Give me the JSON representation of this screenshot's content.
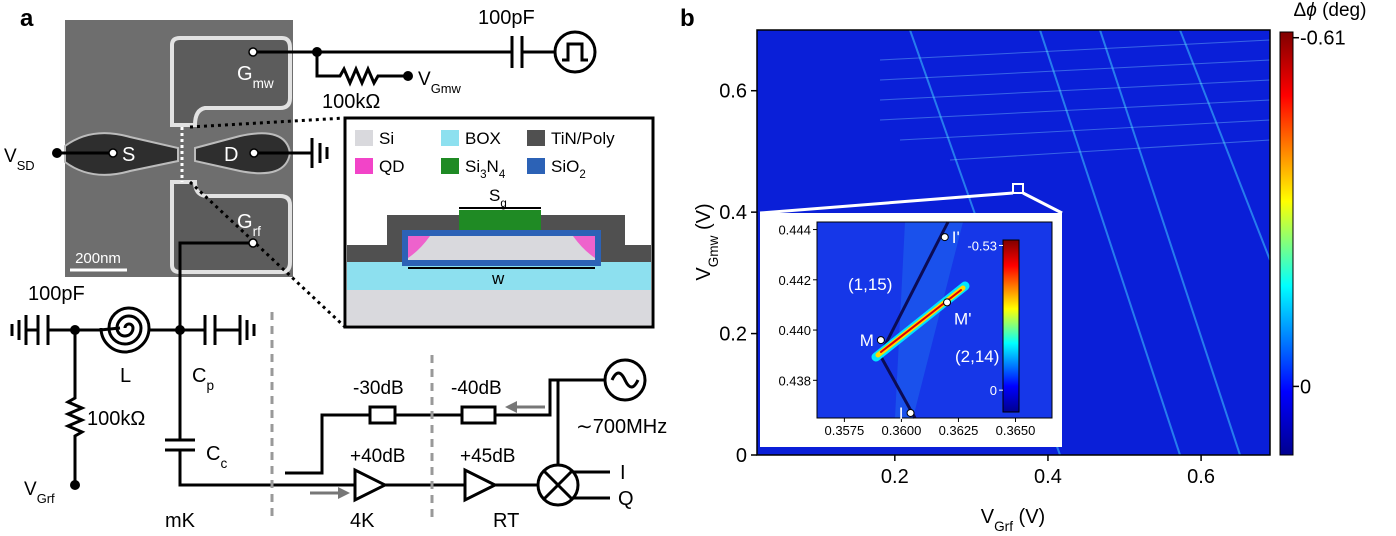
{
  "figure": {
    "panel_labels": [
      "a",
      "b"
    ],
    "sem": {
      "scale_bar": "200nm",
      "terminals": {
        "gmw": [
          {
            "text": "G"
          },
          {
            "text": "mw",
            "sub": true
          }
        ],
        "s": "S",
        "d": "D",
        "grf": [
          {
            "text": "G"
          },
          {
            "text": "rf",
            "sub": true
          }
        ]
      }
    },
    "cross_section": {
      "legend": [
        {
          "label": [
            {
              "text": "Si"
            }
          ],
          "color": "#d9d9dd"
        },
        {
          "label": [
            {
              "text": "BOX"
            }
          ],
          "color": "#8de0ef"
        },
        {
          "label": [
            {
              "text": "TiN/Poly"
            }
          ],
          "color": "#505050"
        },
        {
          "label": [
            {
              "text": "QD"
            }
          ],
          "color": "#f244c8"
        },
        {
          "label": [
            {
              "text": "Si"
            },
            {
              "text": "3",
              "sub": true
            },
            {
              "text": "N"
            },
            {
              "text": "4",
              "sub": true
            }
          ],
          "color": "#1f8a24"
        },
        {
          "label": [
            {
              "text": "SiO"
            },
            {
              "text": "2",
              "sub": true
            }
          ],
          "color": "#2c62b6"
        }
      ],
      "sg": [
        {
          "text": "S"
        },
        {
          "text": "g",
          "sub": true
        }
      ],
      "w": "w"
    },
    "circuit": {
      "v_sd": [
        {
          "text": "V"
        },
        {
          "text": "SD",
          "sub": true
        }
      ],
      "cap_top": "100pF",
      "r_top": "100kΩ",
      "v_gmw": [
        {
          "text": "V"
        },
        {
          "text": "Gmw",
          "sub": true
        }
      ],
      "cap_left": "100pF",
      "inductor": "L",
      "c_p": [
        {
          "text": "C"
        },
        {
          "text": "p",
          "sub": true
        }
      ],
      "r_left": "100kΩ",
      "v_grf": [
        {
          "text": "V"
        },
        {
          "text": "Grf",
          "sub": true
        }
      ],
      "c_c": [
        {
          "text": "C"
        },
        {
          "text": "c",
          "sub": true
        }
      ],
      "stages": [
        "mK",
        "4K",
        "RT"
      ],
      "attenuators": [
        "-30dB",
        "-40dB"
      ],
      "amplifiers": [
        "+40dB",
        "+45dB"
      ],
      "source": "∼700MHz",
      "outputs": [
        "I",
        "Q"
      ]
    }
  },
  "chart_data": {
    "type": "heatmap",
    "xlabel": [
      {
        "text": "V"
      },
      {
        "text": "Grf",
        "sub": true
      },
      {
        "text": " (V)"
      }
    ],
    "ylabel": [
      {
        "text": "V"
      },
      {
        "text": "Gmw",
        "sub": true
      },
      {
        "text": " (V)"
      }
    ],
    "xlim": [
      0.02,
      0.69
    ],
    "ylim": [
      0,
      0.7
    ],
    "xticks": [
      0.2,
      0.4,
      0.6
    ],
    "yticks": [
      0,
      0.2,
      0.4,
      0.6
    ],
    "colorbar": {
      "label": [
        {
          "text": "Δ"
        },
        {
          "text": "ϕ",
          "italic": true
        },
        {
          "text": " (deg)"
        }
      ],
      "clim": [
        0.12,
        -0.62
      ],
      "ticks": [
        -0.61,
        0
      ]
    },
    "inset": {
      "xlim": [
        0.3563,
        0.3666
      ],
      "ylim": [
        0.4365,
        0.4443
      ],
      "xticks": [
        0.3575,
        {
          "value": 0.36,
          "label": "0.3600"
        },
        0.3625,
        {
          "value": 0.365,
          "label": "0.3650"
        }
      ],
      "yticks": [
        0.438,
        {
          "value": 0.44,
          "label": "0.440"
        },
        0.442,
        0.444
      ],
      "colorbar": {
        "clim": [
          0.08,
          -0.55
        ],
        "ticks": [
          -0.53,
          0
        ]
      },
      "regions": [
        "(1,15)",
        "(2,14)"
      ],
      "points": [
        {
          "label": "M",
          "x": 0.3591,
          "y": 0.4396
        },
        {
          "label": "M'",
          "x": 0.362,
          "y": 0.4411
        },
        {
          "label": "I",
          "x": 0.3604,
          "y": 0.4367
        },
        {
          "label": "I'",
          "x": 0.3619,
          "y": 0.4437
        }
      ]
    }
  }
}
